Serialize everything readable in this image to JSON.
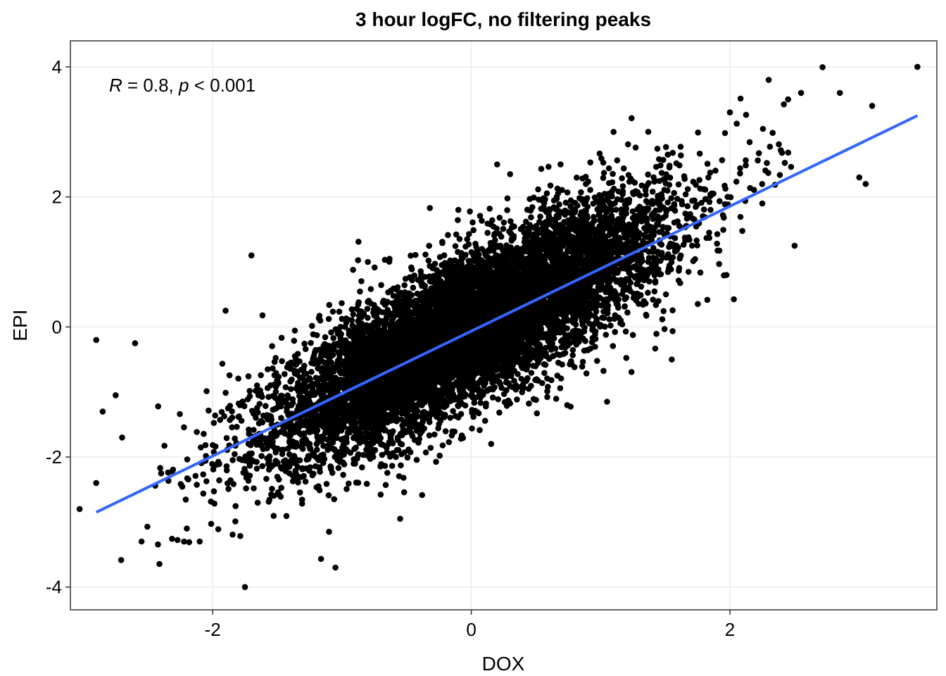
{
  "chart_data": {
    "type": "scatter",
    "title": "3 hour logFC, no filtering peaks",
    "xlabel": "DOX",
    "ylabel": "EPI",
    "xlim": [
      -3.1,
      3.6
    ],
    "ylim": [
      -4.35,
      4.4
    ],
    "x_ticks": [
      -2,
      0,
      2
    ],
    "y_ticks": [
      -4,
      -2,
      0,
      2,
      4
    ],
    "x_tick_labels": [
      "-2",
      "0",
      "2"
    ],
    "y_tick_labels": [
      "-4",
      "-2",
      "0",
      "2",
      "4"
    ],
    "grid": true,
    "annotation": {
      "r_symbol": "R",
      "r_text": " = 0.8, ",
      "p_symbol": "p",
      "p_text": " < 0.001"
    },
    "regression_line": {
      "x": [
        -2.9,
        3.45
      ],
      "y": [
        -2.85,
        3.25
      ],
      "color": "#3366ff"
    },
    "point_color": "#000000",
    "cloud": {
      "correlation": 0.8,
      "x_mean": 0.0,
      "x_sd": 0.75,
      "y_mean": 0.0,
      "y_sd": 0.95,
      "n_points": 9000
    },
    "outliers": [
      [
        3.45,
        4.0
      ],
      [
        2.3,
        3.8
      ],
      [
        2.55,
        3.6
      ],
      [
        2.85,
        3.6
      ],
      [
        3.1,
        3.4
      ],
      [
        1.1,
        3.0
      ],
      [
        2.0,
        3.3
      ],
      [
        2.45,
        3.5
      ],
      [
        3.0,
        2.3
      ],
      [
        3.05,
        2.2
      ],
      [
        2.5,
        1.25
      ],
      [
        -2.9,
        -0.2
      ],
      [
        -2.6,
        -0.25
      ],
      [
        -2.85,
        -1.3
      ],
      [
        -2.9,
        -2.4
      ],
      [
        -2.55,
        -3.3
      ],
      [
        -1.75,
        -4.0
      ],
      [
        -1.05,
        -3.7
      ],
      [
        -1.1,
        -3.15
      ],
      [
        -2.1,
        -3.3
      ],
      [
        -0.55,
        -2.95
      ],
      [
        1.55,
        -0.5
      ],
      [
        1.05,
        -1.15
      ],
      [
        -2.2,
        -3.1
      ],
      [
        -1.9,
        0.25
      ],
      [
        -2.75,
        -1.05
      ],
      [
        -2.7,
        -1.7
      ],
      [
        0.2,
        2.5
      ],
      [
        0.3,
        2.35
      ],
      [
        -0.1,
        1.8
      ],
      [
        -0.8,
        1.0
      ],
      [
        -1.7,
        1.1
      ],
      [
        1.85,
        1.8
      ],
      [
        2.25,
        1.9
      ]
    ]
  }
}
